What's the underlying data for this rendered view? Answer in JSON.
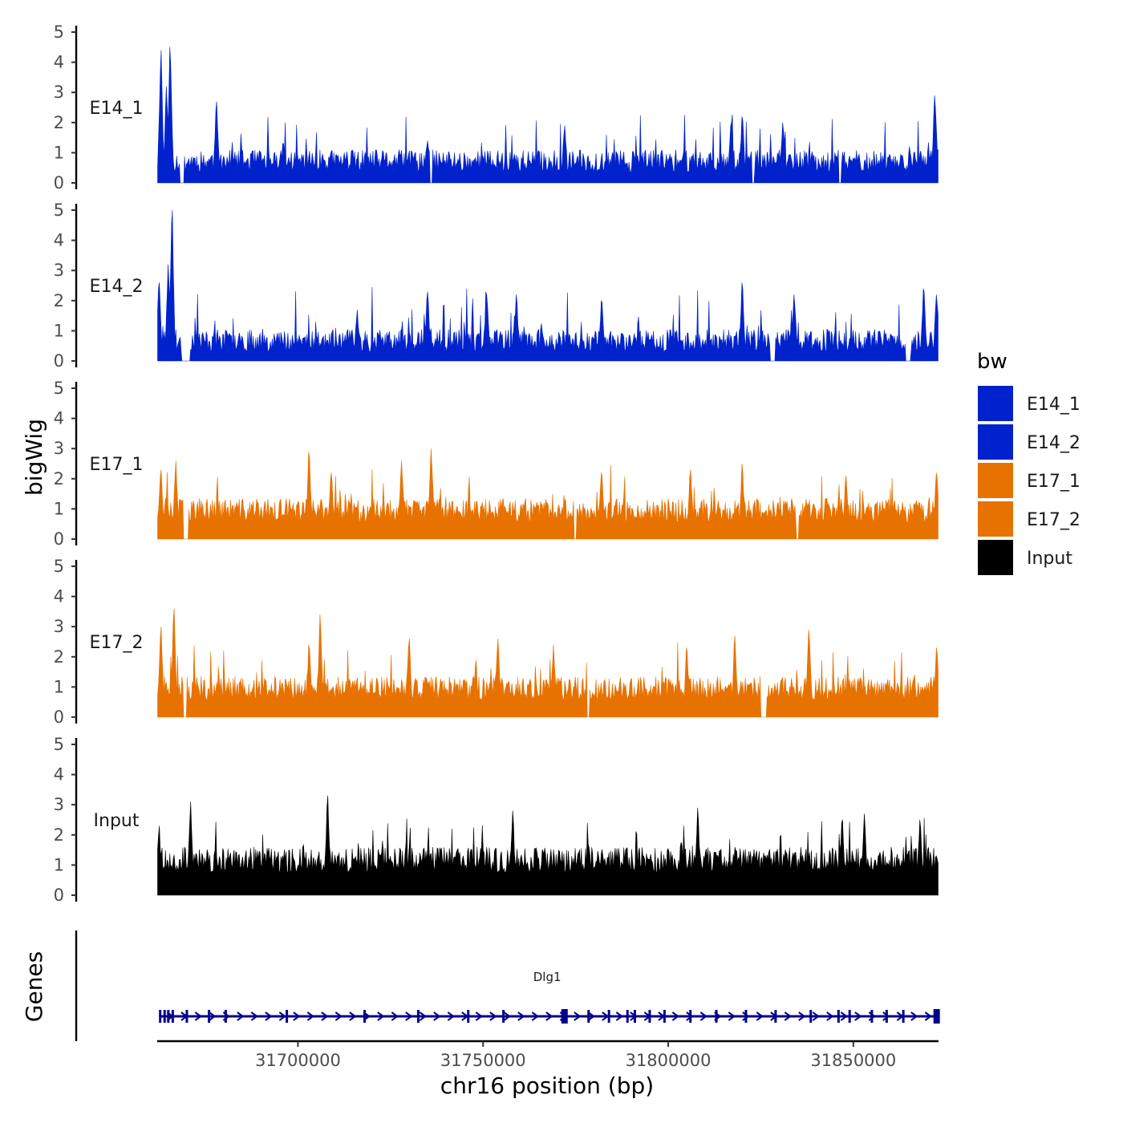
{
  "chart_data": {
    "type": "area",
    "chromosome": "chr16",
    "xlabel": "chr16 position (bp)",
    "ylabel": "bigWig",
    "genes_label": "Genes",
    "xlim": [
      31662000,
      31873000
    ],
    "x_ticks": [
      31700000,
      31750000,
      31800000,
      31850000
    ],
    "x_tick_labels": [
      "31700000",
      "31750000",
      "31800000",
      "31850000"
    ],
    "ylim": [
      0,
      5
    ],
    "y_ticks": [
      0,
      1,
      2,
      3,
      4,
      5
    ],
    "y_tick_labels": [
      "0",
      "1",
      "2",
      "3",
      "4",
      "5"
    ],
    "legend": {
      "title": "bw",
      "placement": "right",
      "entries": [
        {
          "name": "E14_1",
          "color": "#0022CC"
        },
        {
          "name": "E14_2",
          "color": "#0022CC"
        },
        {
          "name": "E17_1",
          "color": "#E87200"
        },
        {
          "name": "E17_2",
          "color": "#E87200"
        },
        {
          "name": "Input",
          "color": "#000000"
        }
      ]
    },
    "series": [
      {
        "name": "E14_1",
        "color": "#0022CC",
        "seed": 11,
        "base": 0.35,
        "noise": 0.75,
        "spike_prob": 0.05,
        "spike_max": 1.5,
        "peaks": [
          {
            "x": 31663000,
            "y": 4.4
          },
          {
            "x": 31665500,
            "y": 4.5
          },
          {
            "x": 31664500,
            "y": 3.2
          },
          {
            "x": 31678000,
            "y": 2.7
          },
          {
            "x": 31696000,
            "y": 1.3
          },
          {
            "x": 31735000,
            "y": 1.4
          },
          {
            "x": 31772000,
            "y": 1.9
          },
          {
            "x": 31817000,
            "y": 2.0
          },
          {
            "x": 31820000,
            "y": 2.2
          },
          {
            "x": 31831000,
            "y": 2.0
          },
          {
            "x": 31872000,
            "y": 2.9
          }
        ],
        "gaps": [
          {
            "start": 31668000,
            "end": 31669200
          },
          {
            "start": 31735500,
            "end": 31736300
          },
          {
            "start": 31822500,
            "end": 31823200
          },
          {
            "start": 31846000,
            "end": 31846800
          }
        ]
      },
      {
        "name": "E14_2",
        "color": "#0022CC",
        "seed": 23,
        "base": 0.3,
        "noise": 0.75,
        "spike_prob": 0.055,
        "spike_max": 1.6,
        "peaks": [
          {
            "x": 31662500,
            "y": 2.6
          },
          {
            "x": 31666000,
            "y": 5.0
          },
          {
            "x": 31665000,
            "y": 3.2
          },
          {
            "x": 31716000,
            "y": 1.7
          },
          {
            "x": 31735000,
            "y": 2.3
          },
          {
            "x": 31751000,
            "y": 2.2
          },
          {
            "x": 31759000,
            "y": 2.2
          },
          {
            "x": 31782000,
            "y": 2.0
          },
          {
            "x": 31820000,
            "y": 2.6
          },
          {
            "x": 31834000,
            "y": 2.2
          },
          {
            "x": 31869000,
            "y": 2.4
          },
          {
            "x": 31872500,
            "y": 2.2
          }
        ],
        "gaps": [
          {
            "start": 31668500,
            "end": 31671000
          },
          {
            "start": 31827500,
            "end": 31829000
          },
          {
            "start": 31864000,
            "end": 31865500
          }
        ]
      },
      {
        "name": "E17_1",
        "color": "#E87200",
        "seed": 37,
        "base": 0.55,
        "noise": 0.8,
        "spike_prob": 0.05,
        "spike_max": 1.3,
        "peaks": [
          {
            "x": 31663000,
            "y": 2.3
          },
          {
            "x": 31667000,
            "y": 2.6
          },
          {
            "x": 31703000,
            "y": 2.9
          },
          {
            "x": 31709000,
            "y": 2.2
          },
          {
            "x": 31728000,
            "y": 2.6
          },
          {
            "x": 31736000,
            "y": 3.0
          },
          {
            "x": 31782000,
            "y": 2.2
          },
          {
            "x": 31806000,
            "y": 2.3
          },
          {
            "x": 31820000,
            "y": 2.5
          },
          {
            "x": 31848000,
            "y": 2.1
          },
          {
            "x": 31872500,
            "y": 2.2
          }
        ],
        "gaps": [
          {
            "start": 31669000,
            "end": 31670500
          },
          {
            "start": 31774500,
            "end": 31775200
          },
          {
            "start": 31834500,
            "end": 31835200
          }
        ]
      },
      {
        "name": "E17_2",
        "color": "#E87200",
        "seed": 51,
        "base": 0.55,
        "noise": 0.8,
        "spike_prob": 0.055,
        "spike_max": 1.4,
        "peaks": [
          {
            "x": 31663000,
            "y": 3.0
          },
          {
            "x": 31666500,
            "y": 3.6
          },
          {
            "x": 31703000,
            "y": 2.4
          },
          {
            "x": 31706000,
            "y": 3.4
          },
          {
            "x": 31730000,
            "y": 2.6
          },
          {
            "x": 31754000,
            "y": 2.6
          },
          {
            "x": 31769000,
            "y": 2.4
          },
          {
            "x": 31805000,
            "y": 2.3
          },
          {
            "x": 31818000,
            "y": 2.7
          },
          {
            "x": 31838000,
            "y": 2.9
          },
          {
            "x": 31872500,
            "y": 2.3
          }
        ],
        "gaps": [
          {
            "start": 31669000,
            "end": 31670000
          },
          {
            "start": 31778000,
            "end": 31778800
          },
          {
            "start": 31825000,
            "end": 31826500
          }
        ]
      },
      {
        "name": "Input",
        "color": "#000000",
        "seed": 67,
        "base": 0.75,
        "noise": 0.85,
        "spike_prob": 0.06,
        "spike_max": 1.0,
        "peaks": [
          {
            "x": 31662500,
            "y": 2.3
          },
          {
            "x": 31671000,
            "y": 3.1
          },
          {
            "x": 31708000,
            "y": 3.3
          },
          {
            "x": 31758000,
            "y": 2.8
          },
          {
            "x": 31808000,
            "y": 2.9
          },
          {
            "x": 31847000,
            "y": 2.5
          },
          {
            "x": 31853000,
            "y": 2.7
          },
          {
            "x": 31868000,
            "y": 2.5
          }
        ],
        "gaps": []
      }
    ],
    "gene": {
      "name": "Dlg1",
      "strand": "+",
      "color": "#00008B",
      "start": 31662500,
      "end": 31873000,
      "exons": [
        31662800,
        31664000,
        31665000,
        31666200,
        31670000,
        31676000,
        31680500,
        31697000,
        31718000,
        31732500,
        31746000,
        31755500,
        31772000,
        31778500,
        31784000,
        31789000,
        31791000,
        31795000,
        31799000,
        31806000,
        31813000,
        31821000,
        31829000,
        31838500,
        31846000,
        31849000,
        31855000,
        31859000,
        31863500,
        31872500
      ],
      "big_exons": [
        31772000,
        31872500
      ]
    }
  }
}
